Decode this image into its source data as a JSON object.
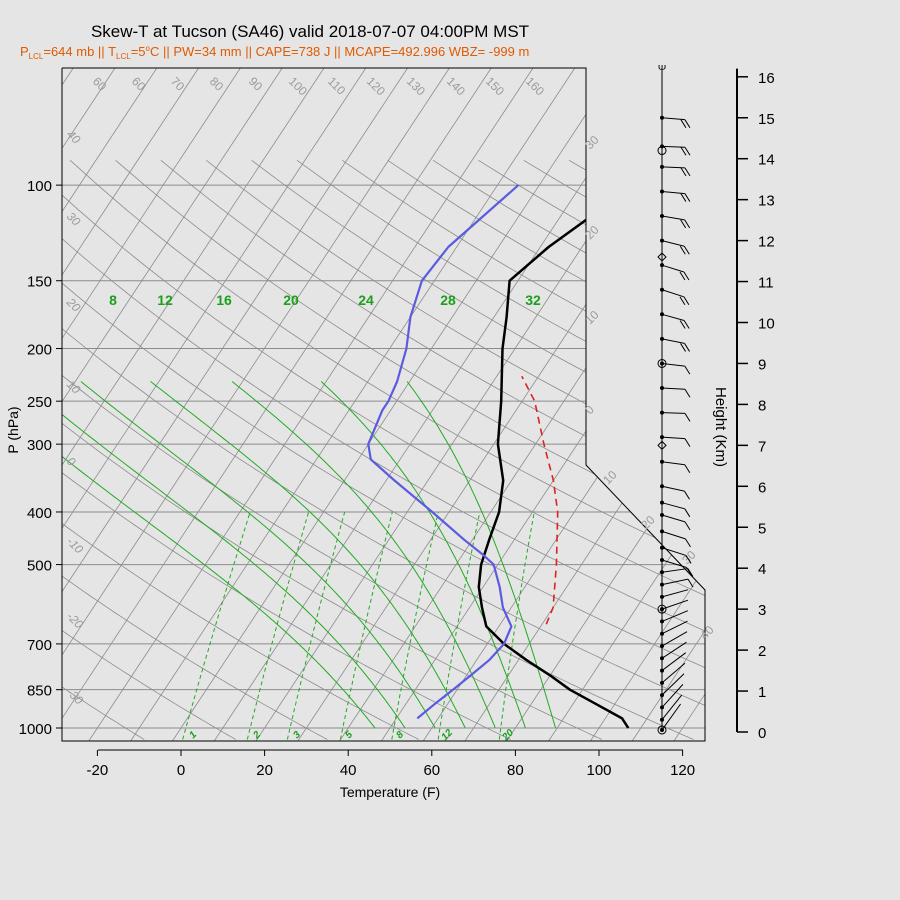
{
  "title": "Skew-T at Tucson (SA46) valid 2018-07-07 04:00PM MST",
  "subtitle": {
    "p_lcl_p": "P",
    "p_lcl_sub": "LCL",
    "p_lcl_val": "=644 mb",
    "sep1": " || ",
    "t_lcl_t": "T",
    "t_lcl_sub": "LCL",
    "t_lcl_val": "=5",
    "deg": "o",
    "t_lcl_unit": "C",
    "rest": " || PW=34 mm || CAPE=738 J || MCAPE=492.996 WBZ= -999 m"
  },
  "chart_data": {
    "type": "line",
    "xlabel": "Temperature (F)",
    "ylabel": "P (hPa)",
    "y2label": "Height (Km)",
    "x_ticks": [
      -20,
      0,
      20,
      40,
      60,
      80,
      100,
      120
    ],
    "p_ticks": [
      100,
      150,
      200,
      250,
      300,
      400,
      500,
      700,
      850,
      1000
    ],
    "height_ticks": [
      0,
      1,
      2,
      3,
      4,
      5,
      6,
      7,
      8,
      9,
      10,
      11,
      12,
      13,
      14,
      15,
      16
    ],
    "isotherm_labels_top": [
      60,
      60,
      70,
      80,
      90,
      100,
      110,
      120,
      130,
      140,
      150,
      160
    ],
    "isotherm_labels_right": [
      30,
      20,
      10,
      0,
      10,
      20,
      30,
      40
    ],
    "dry_adiabat_labels_left": [
      40,
      30,
      20,
      10,
      0,
      -10,
      -20,
      -30
    ],
    "mixing_ratio_labels": [
      "1",
      "2",
      "3",
      "5",
      "8",
      "12",
      "20"
    ],
    "moist_adiabat_labels": [
      "8",
      "12",
      "16",
      "20",
      "24",
      "28",
      "32"
    ],
    "colors": {
      "temperature": "#000000",
      "dewpoint": "#5b5be0",
      "parcel": "#dd2222",
      "moist_adiabats": "#22aa22",
      "grid": "#8c8c8c",
      "subtitle": "#e05a00"
    },
    "series": [
      {
        "name": "Temperature",
        "points": [
          [
            1000,
            107
          ],
          [
            960,
            104
          ],
          [
            900,
            95
          ],
          [
            850,
            87
          ],
          [
            800,
            80
          ],
          [
            750,
            72
          ],
          [
            700,
            64
          ],
          [
            650,
            57
          ],
          [
            600,
            53
          ],
          [
            550,
            49
          ],
          [
            500,
            46
          ],
          [
            450,
            44
          ],
          [
            400,
            42
          ],
          [
            350,
            38
          ],
          [
            300,
            31
          ],
          [
            250,
            25
          ],
          [
            200,
            17
          ],
          [
            175,
            13
          ],
          [
            150,
            8
          ],
          [
            130,
            12
          ],
          [
            115,
            17
          ],
          [
            100,
            22
          ]
        ]
      },
      {
        "name": "Dewpoint",
        "points": [
          [
            960,
            55
          ],
          [
            900,
            57
          ],
          [
            850,
            59
          ],
          [
            800,
            61
          ],
          [
            750,
            63
          ],
          [
            700,
            64
          ],
          [
            650,
            63
          ],
          [
            600,
            58
          ],
          [
            550,
            54
          ],
          [
            500,
            49
          ],
          [
            480,
            45
          ],
          [
            450,
            38
          ],
          [
            400,
            26
          ],
          [
            350,
            12
          ],
          [
            320,
            3
          ],
          [
            300,
            0
          ],
          [
            260,
            -2
          ],
          [
            250,
            -2
          ],
          [
            230,
            -3
          ],
          [
            200,
            -6
          ],
          [
            175,
            -10
          ],
          [
            150,
            -13
          ],
          [
            130,
            -12
          ],
          [
            100,
            -5
          ]
        ]
      },
      {
        "name": "Parcel",
        "points": [
          [
            644,
            71
          ],
          [
            600,
            70
          ],
          [
            500,
            64
          ],
          [
            400,
            56
          ],
          [
            350,
            50
          ],
          [
            300,
            42
          ],
          [
            250,
            33
          ],
          [
            225,
            26
          ]
        ]
      }
    ],
    "wind_profile": {
      "levels": [
        0.05,
        0.3,
        0.6,
        0.9,
        1.2,
        1.5,
        1.8,
        2.1,
        2.4,
        2.7,
        3.0,
        3.3,
        3.6,
        3.9,
        4.2,
        4.5,
        4.9,
        5.3,
        5.6,
        6.0,
        6.6,
        7.2,
        7.8,
        8.4,
        9.0,
        9.6,
        10.2,
        10.8,
        11.4,
        12.0,
        12.6,
        13.2,
        13.8,
        14.3,
        15.0
      ],
      "open_circles": [
        0.05,
        3.0,
        9.0,
        14.2
      ],
      "diamonds": [
        7.0,
        11.6
      ]
    }
  }
}
